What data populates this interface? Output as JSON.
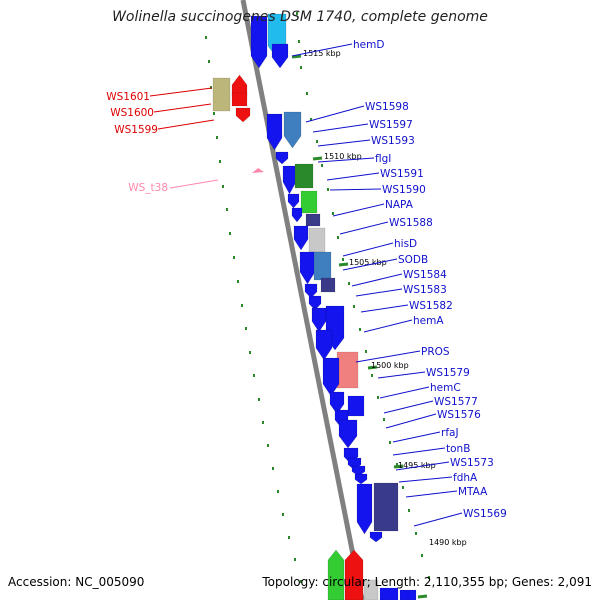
{
  "title": "Wolinella succinogenes DSM 1740, complete genome",
  "footer": {
    "accession": "Accession: NC_005090",
    "summary": "Topology: circular; Length: 2,110,355 bp; Genes: 2,091"
  },
  "colors": {
    "blue_gene": "#1a1aee",
    "blue_link": "#1010cc",
    "red_label": "#dd0000",
    "pink_label": "#ff88aa",
    "backbone": "#808080",
    "tick": "#2a8a2a"
  },
  "ticks": [
    "1515 kbp",
    "1510 kbp",
    "1505 kbp",
    "1500 kbp",
    "1495 kbp",
    "1490 kbp"
  ],
  "labels_right": [
    "hemD",
    "WS1598",
    "WS1597",
    "WS1593",
    "flgI",
    "WS1591",
    "WS1590",
    "NAPA",
    "WS1588",
    "hisD",
    "SODB",
    "WS1584",
    "WS1583",
    "WS1582",
    "hemA",
    "PROS",
    "WS1579",
    "hemC",
    "WS1577",
    "WS1576",
    "rfaJ",
    "tonB",
    "WS1573",
    "fdhA",
    "MTAA",
    "WS1569"
  ],
  "labels_left": [
    "WS1601",
    "WS1600",
    "WS1599",
    "WS_t38"
  ]
}
